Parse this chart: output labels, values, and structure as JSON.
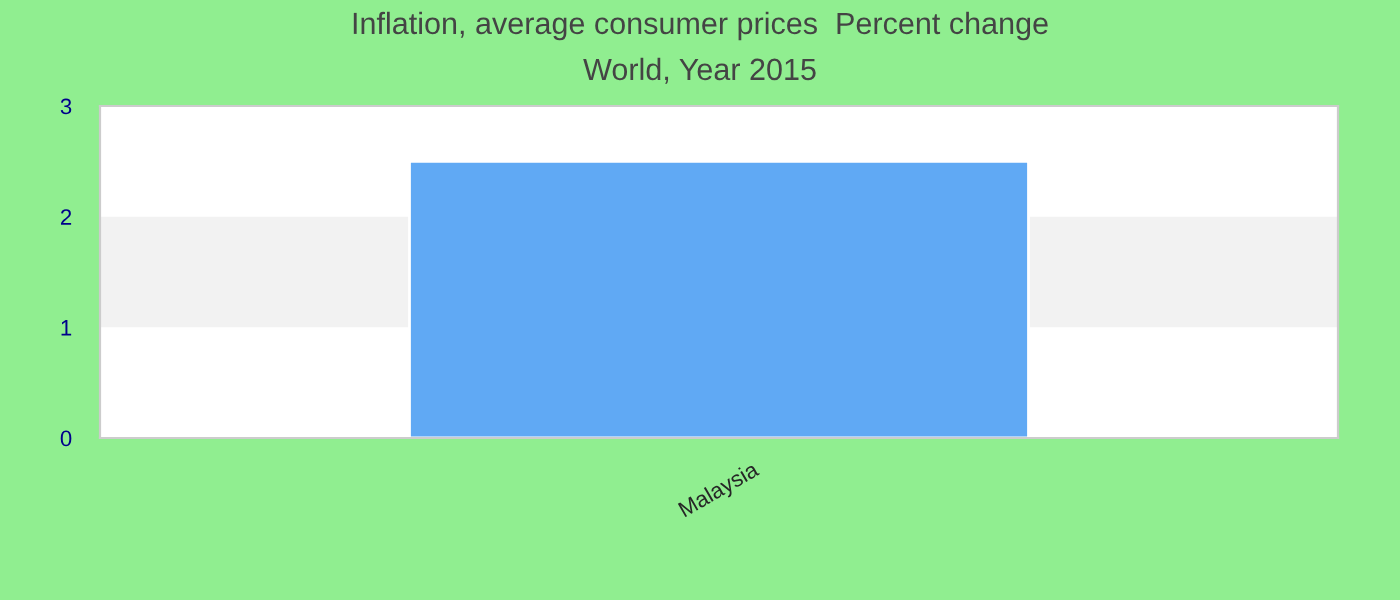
{
  "chart_data": {
    "type": "bar",
    "title": "Inflation, average consumer prices  Percent change",
    "subtitle": "World, Year 2015",
    "categories": [
      "Malaysia"
    ],
    "values": [
      2.5
    ],
    "color": "#60a9f4",
    "ylim": [
      0,
      3
    ],
    "yticks": [
      0,
      1,
      2,
      3
    ],
    "grid": false,
    "bands": [
      {
        "axis": "y",
        "from": 1,
        "to": 2,
        "color": "#f2f2f2"
      }
    ]
  }
}
